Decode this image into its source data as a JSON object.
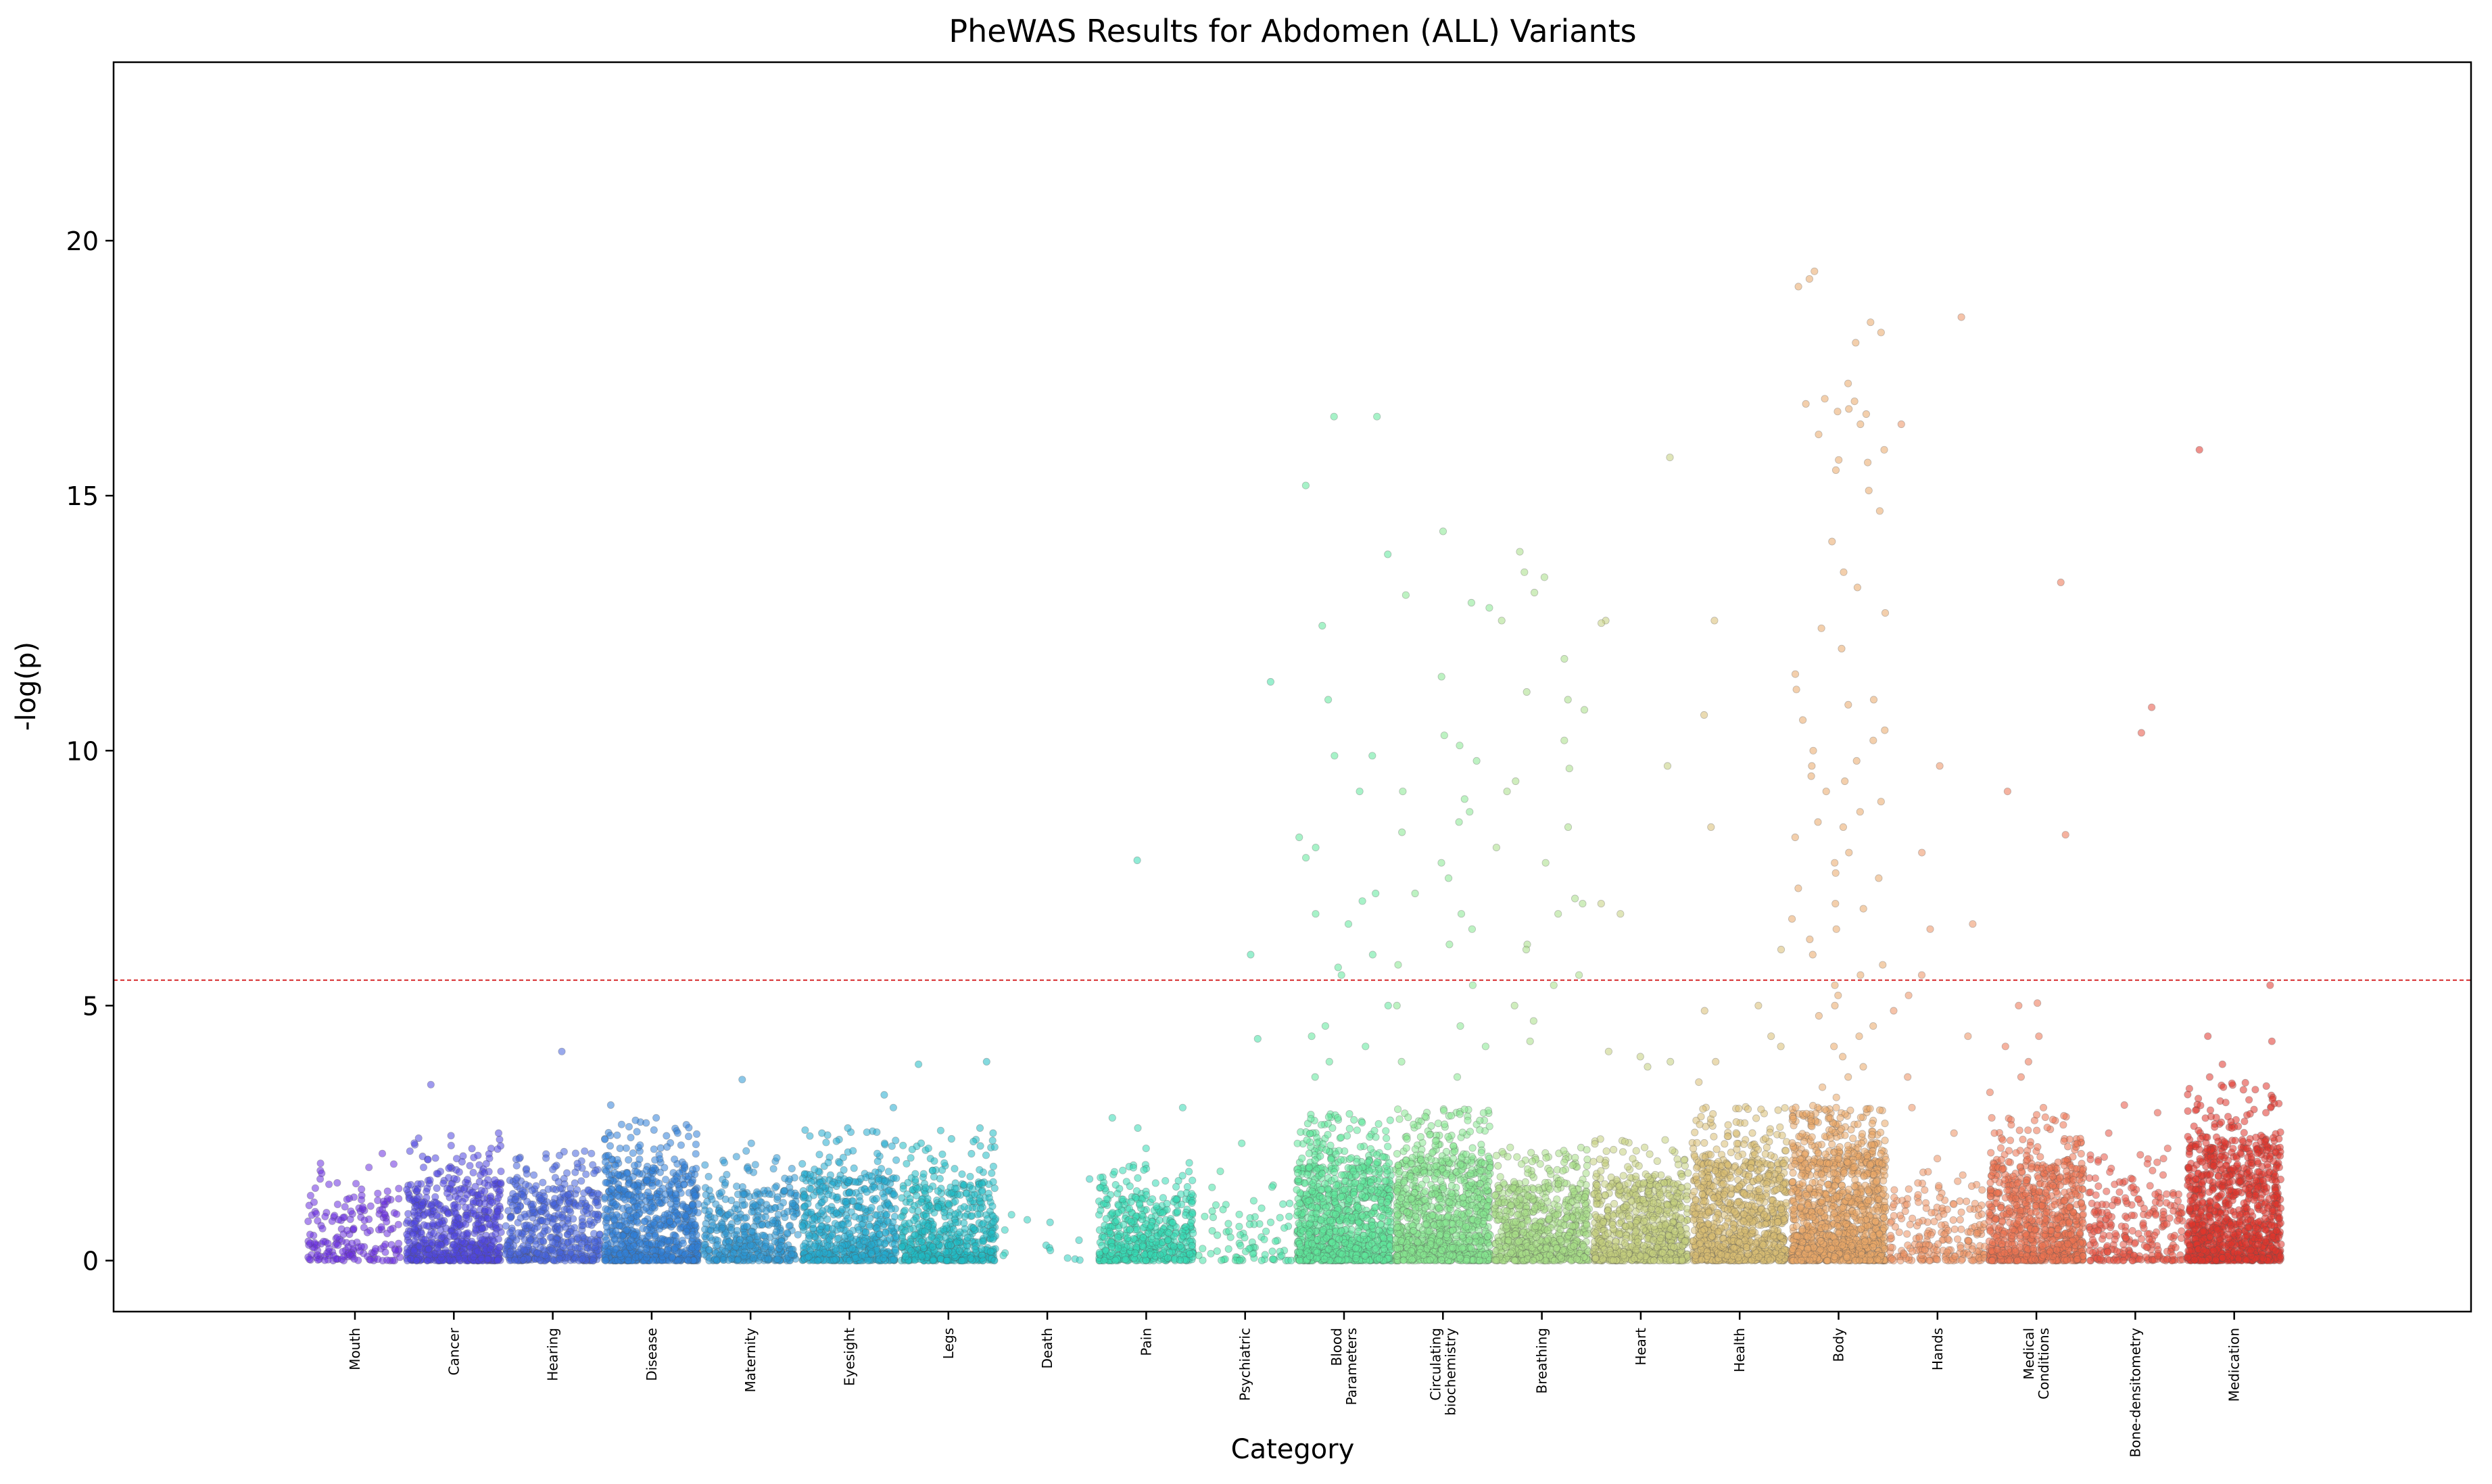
{
  "chart_data": {
    "type": "scatter",
    "title": "PheWAS Results for Abdomen (ALL) Variants",
    "xlabel": "Category",
    "ylabel": "-log(p)",
    "ylim": [
      -1,
      23.5
    ],
    "yticks": [
      0,
      5,
      10,
      15,
      20
    ],
    "threshold": 5.5,
    "threshold_color": "#d62728",
    "grid": false,
    "legend": "none",
    "categories": [
      {
        "label": "Mouth",
        "color": "#6a2fe0",
        "n": 180,
        "max_bulk": 1.2,
        "p_tail": 0.12,
        "outliers": [
          2.1,
          1.6,
          1.4,
          1.2
        ]
      },
      {
        "label": "Cancer",
        "color": "#4f45e0",
        "n": 620,
        "max_bulk": 1.5,
        "p_tail": 0.1,
        "outliers": [
          3.45,
          2.5,
          2.45,
          2.4,
          2.0,
          1.9
        ]
      },
      {
        "label": "Hearing",
        "color": "#4662dc",
        "n": 480,
        "max_bulk": 1.4,
        "p_tail": 0.1,
        "outliers": [
          4.1,
          2.1,
          2.0,
          1.8,
          1.7
        ]
      },
      {
        "label": "Disease",
        "color": "#2f7fd8",
        "n": 760,
        "max_bulk": 1.7,
        "p_tail": 0.1,
        "outliers": [
          3.05,
          2.8,
          2.75,
          2.7,
          2.5,
          2.2
        ]
      },
      {
        "label": "Maternity",
        "color": "#2b97d4",
        "n": 430,
        "max_bulk": 1.3,
        "p_tail": 0.1,
        "outliers": [
          3.55,
          2.3,
          2.15,
          1.8
        ]
      },
      {
        "label": "Eyesight",
        "color": "#22acd0",
        "n": 600,
        "max_bulk": 1.6,
        "p_tail": 0.1,
        "outliers": [
          3.25,
          3.0,
          2.6,
          2.5,
          2.3,
          2.1
        ]
      },
      {
        "label": "Legs",
        "color": "#1fbcc4",
        "n": 560,
        "max_bulk": 1.5,
        "p_tail": 0.1,
        "outliers": [
          3.9,
          3.85,
          2.6,
          2.55,
          2.5,
          2.2
        ]
      },
      {
        "label": "Death",
        "color": "#2ecfbf",
        "n": 14,
        "max_bulk": 1.6,
        "p_tail": 0.0,
        "outliers": []
      },
      {
        "label": "Pain",
        "color": "#35dab4",
        "n": 520,
        "max_bulk": 1.2,
        "p_tail": 0.1,
        "outliers": [
          7.85,
          3.0,
          2.8,
          2.6,
          2.2
        ]
      },
      {
        "label": "Psychiatric",
        "color": "#46e2a6",
        "n": 80,
        "max_bulk": 1.0,
        "p_tail": 0.1,
        "outliers": [
          11.35,
          6.0,
          4.35,
          2.3,
          1.75
        ]
      },
      {
        "label": "Blood Parameters",
        "color": "#5ee89a",
        "n": 1100,
        "max_bulk": 1.8,
        "p_tail": 0.12,
        "outliers": [
          16.55,
          16.55,
          15.2,
          13.85,
          12.45,
          11.0,
          9.9,
          9.9,
          9.2,
          8.3,
          8.1,
          7.9,
          7.2,
          7.05,
          6.8,
          6.6,
          6.0,
          5.75,
          5.6,
          5.0,
          4.6,
          4.4,
          4.2,
          3.9,
          3.6
        ]
      },
      {
        "label": "Circulating biochemistry",
        "color": "#86e890",
        "n": 1100,
        "max_bulk": 1.9,
        "p_tail": 0.12,
        "outliers": [
          14.3,
          13.05,
          12.9,
          12.8,
          11.45,
          10.3,
          10.1,
          9.8,
          9.2,
          9.05,
          8.8,
          8.6,
          8.4,
          7.8,
          7.5,
          7.2,
          6.8,
          6.5,
          6.2,
          5.8,
          5.4,
          5.0,
          4.6,
          4.2,
          3.9,
          3.6
        ]
      },
      {
        "label": "Breathing",
        "color": "#a8df86",
        "n": 720,
        "max_bulk": 1.4,
        "p_tail": 0.12,
        "outliers": [
          13.9,
          13.5,
          13.4,
          13.1,
          12.55,
          11.8,
          11.15,
          11.0,
          10.8,
          10.2,
          9.65,
          9.4,
          9.2,
          8.5,
          8.1,
          7.8,
          7.1,
          7.0,
          6.8,
          6.2,
          6.1,
          5.6,
          5.4,
          5.0,
          4.7,
          4.3
        ]
      },
      {
        "label": "Heart",
        "color": "#c4cf7e",
        "n": 760,
        "max_bulk": 1.5,
        "p_tail": 0.1,
        "outliers": [
          15.75,
          12.55,
          12.5,
          9.7,
          7.0,
          6.8,
          4.1,
          4.0,
          3.9,
          3.8
        ]
      },
      {
        "label": "Health",
        "color": "#d8be72",
        "n": 1000,
        "max_bulk": 1.9,
        "p_tail": 0.1,
        "outliers": [
          12.55,
          10.7,
          8.5,
          6.1,
          5.0,
          4.9,
          4.4,
          4.2,
          3.9,
          3.5
        ]
      },
      {
        "label": "Body",
        "color": "#eaa768",
        "n": 1250,
        "max_bulk": 1.9,
        "p_tail": 0.18,
        "outliers": [
          19.4,
          19.25,
          19.1,
          18.4,
          18.2,
          18.0,
          17.2,
          16.9,
          16.85,
          16.8,
          16.7,
          16.65,
          16.6,
          16.4,
          16.2,
          15.9,
          15.7,
          15.65,
          15.5,
          15.1,
          14.7,
          14.1,
          13.5,
          13.2,
          12.7,
          12.4,
          12.0,
          11.5,
          11.2,
          11.0,
          10.9,
          10.6,
          10.4,
          10.2,
          10.0,
          9.8,
          9.7,
          9.5,
          9.4,
          9.2,
          9.0,
          8.8,
          8.6,
          8.5,
          8.3,
          8.0,
          7.8,
          7.6,
          7.5,
          7.3,
          7.0,
          6.9,
          6.7,
          6.5,
          6.3,
          6.0,
          5.8,
          5.6,
          5.4,
          5.2,
          5.0,
          4.8,
          4.6,
          4.4,
          4.2,
          4.0,
          3.8,
          3.6,
          3.4,
          3.2,
          3.0,
          2.8
        ]
      },
      {
        "label": "Hands",
        "color": "#ed9262",
        "n": 210,
        "max_bulk": 1.1,
        "p_tail": 0.15,
        "outliers": [
          18.5,
          16.4,
          9.7,
          8.0,
          6.6,
          6.5,
          5.6,
          5.2,
          4.9,
          4.4,
          3.6,
          3.0,
          2.5,
          2.0
        ]
      },
      {
        "label": "Medical Conditions",
        "color": "#ec7251",
        "n": 860,
        "max_bulk": 1.8,
        "p_tail": 0.12,
        "outliers": [
          13.3,
          9.2,
          8.35,
          5.05,
          5.0,
          4.4,
          4.2,
          3.9,
          3.6,
          3.3,
          3.0,
          2.8,
          2.5
        ]
      },
      {
        "label": "Bone-densitometry",
        "color": "#e85443",
        "n": 260,
        "max_bulk": 1.3,
        "p_tail": 0.12,
        "outliers": [
          10.85,
          10.35,
          3.05,
          2.9,
          2.5,
          2.2,
          2.0,
          1.9
        ]
      },
      {
        "label": "Medication",
        "color": "#e0352b",
        "n": 1100,
        "max_bulk": 2.2,
        "p_tail": 0.1,
        "outliers": [
          15.9,
          5.4,
          4.4,
          4.3,
          3.85,
          3.6,
          3.4,
          3.1,
          3.0,
          2.9,
          2.6
        ]
      }
    ]
  }
}
